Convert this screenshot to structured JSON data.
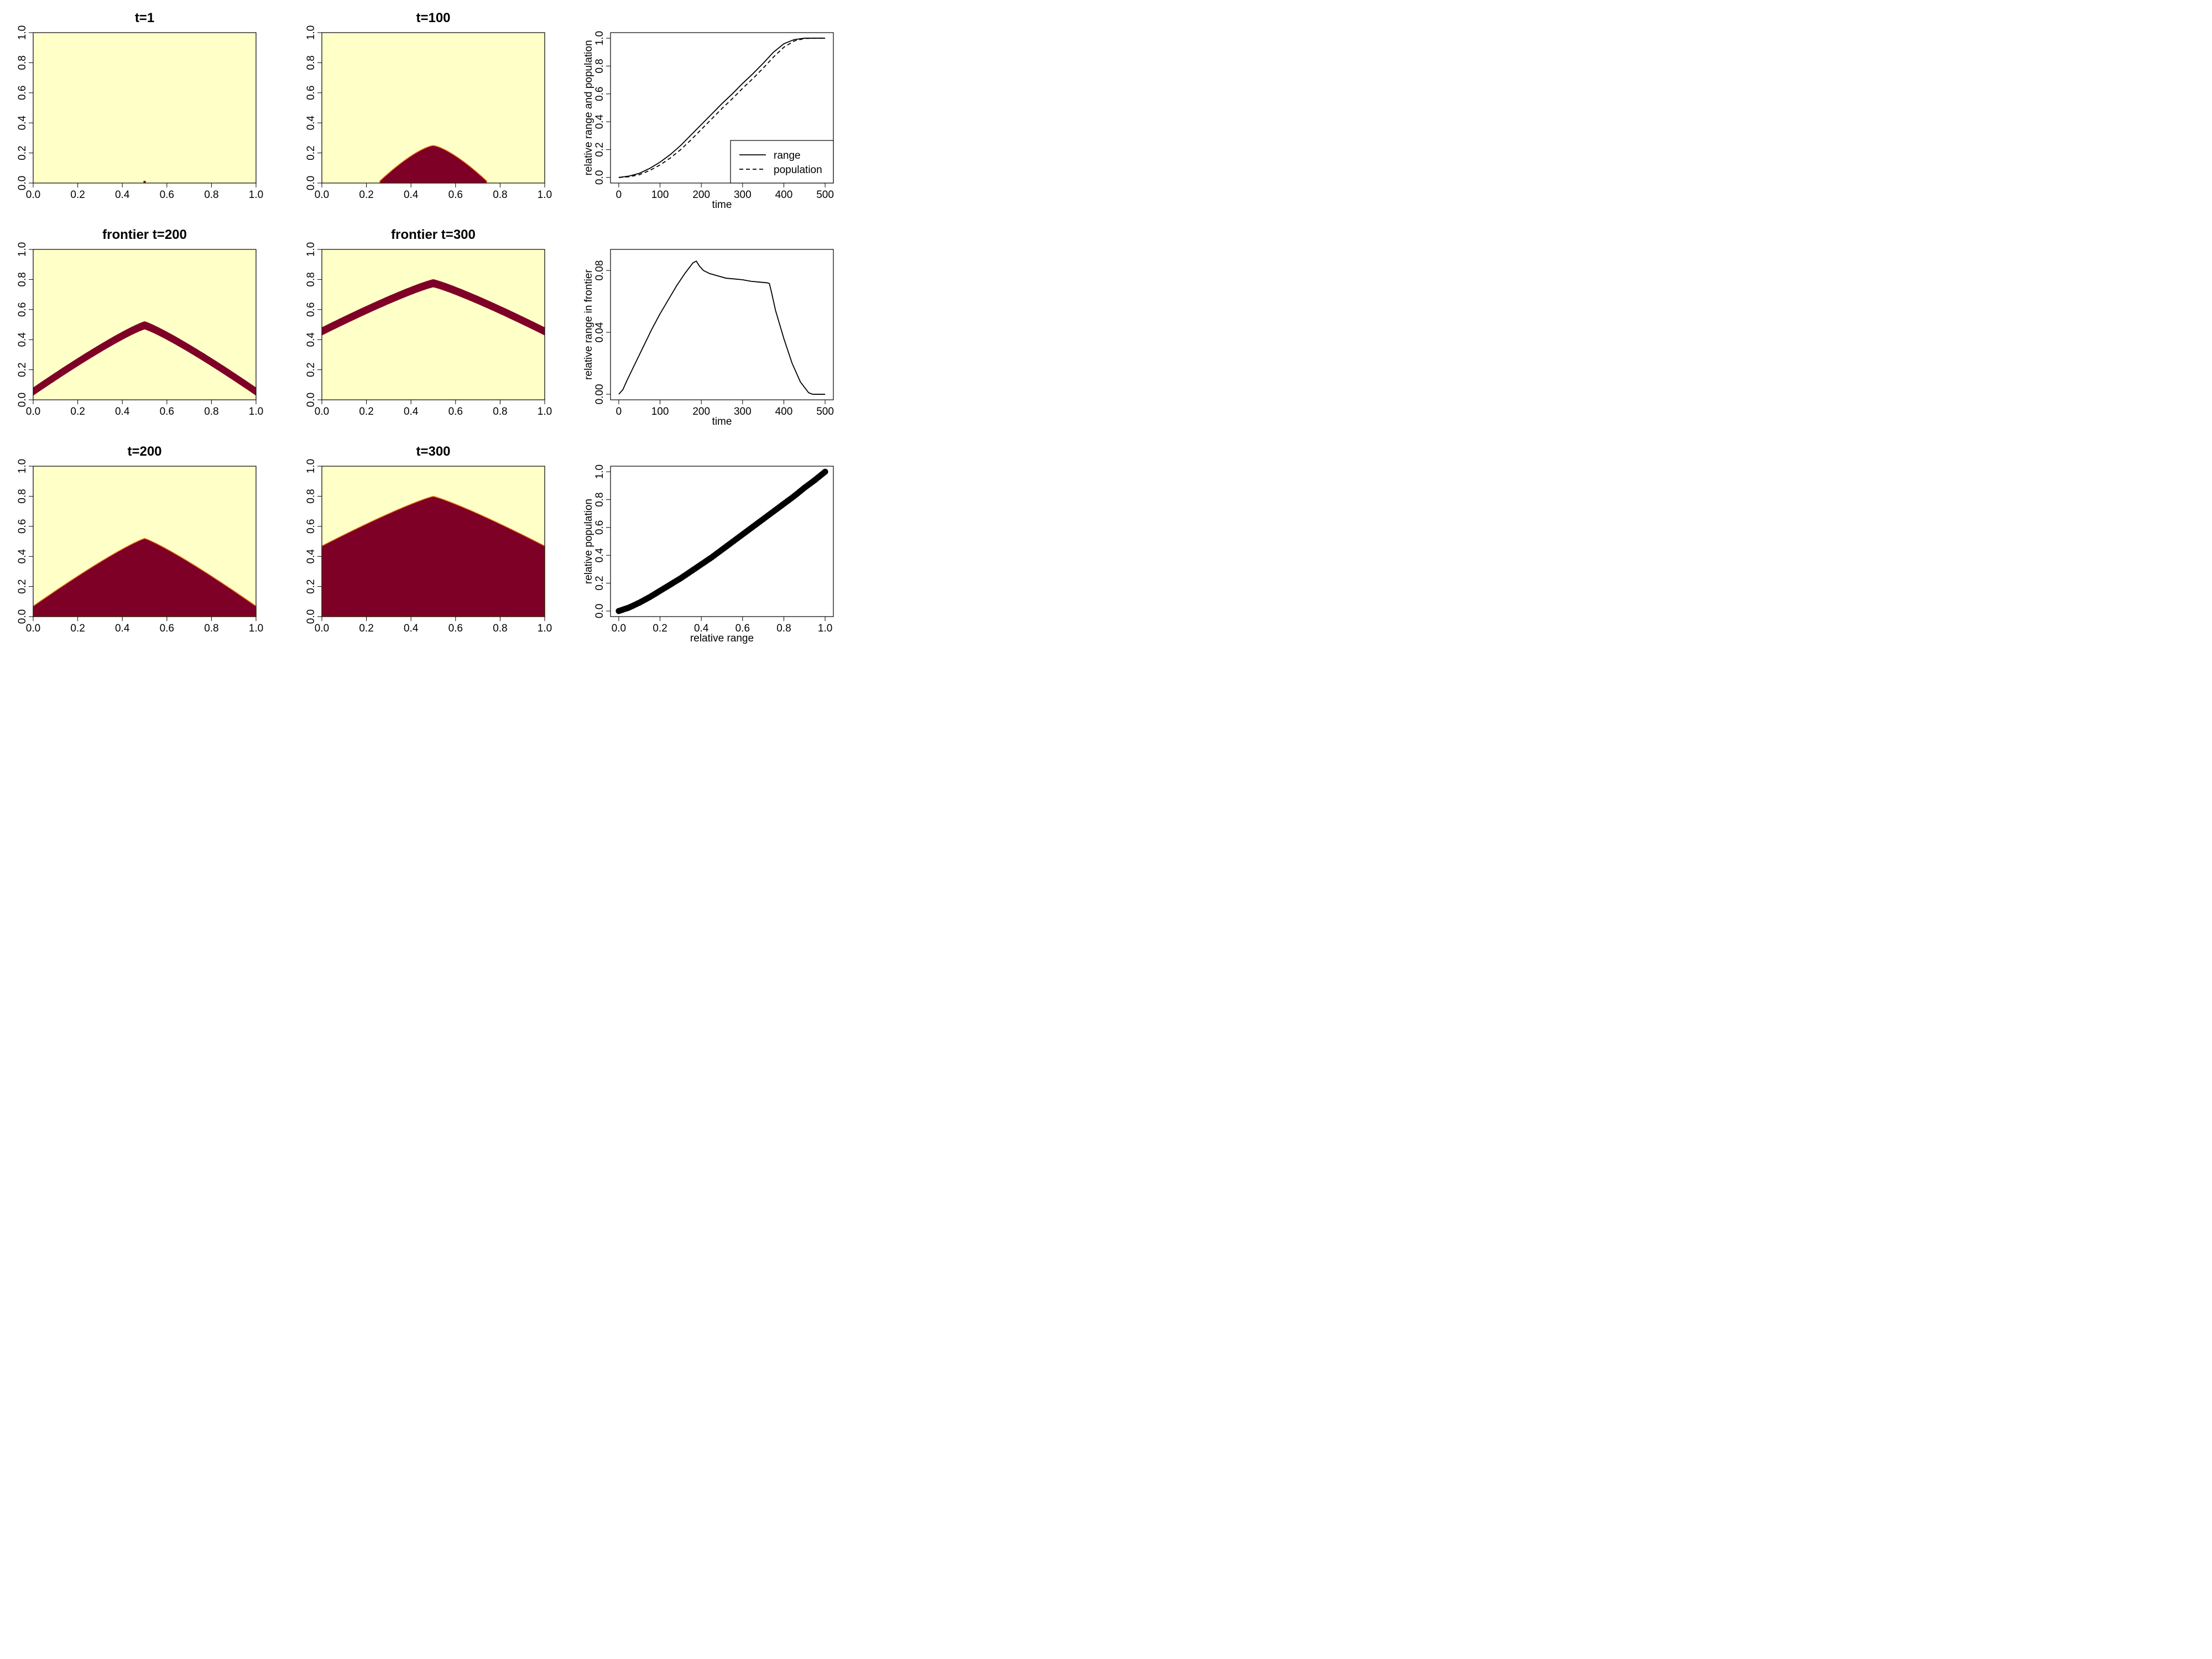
{
  "colors": {
    "background": "#FFFFC8",
    "occupied": "#7F0027",
    "edge": "#F28C28",
    "line": "#000000"
  },
  "chart_data": [
    {
      "type": "heatmap",
      "title": "t=1",
      "kind": "filled",
      "peak": 0.0,
      "dot": [
        0.5,
        0.0
      ],
      "xlim": [
        0,
        1
      ],
      "ylim": [
        0,
        1
      ],
      "xticks": [
        "0.0",
        "0.2",
        "0.4",
        "0.6",
        "0.8",
        "1.0"
      ],
      "yticks": [
        "0.0",
        "0.2",
        "0.4",
        "0.6",
        "0.8",
        "1.0"
      ]
    },
    {
      "type": "heatmap",
      "title": "t=100",
      "kind": "filled",
      "peak": 0.25,
      "halfwidth": 0.25,
      "xlim": [
        0,
        1
      ],
      "ylim": [
        0,
        1
      ],
      "xticks": [
        "0.0",
        "0.2",
        "0.4",
        "0.6",
        "0.8",
        "1.0"
      ],
      "yticks": [
        "0.0",
        "0.2",
        "0.4",
        "0.6",
        "0.8",
        "1.0"
      ]
    },
    {
      "type": "line",
      "xlabel": "time",
      "ylabel": "relative range and population",
      "xlim": [
        0,
        500
      ],
      "ylim": [
        0,
        1
      ],
      "xticks": [
        "0",
        "100",
        "200",
        "300",
        "400",
        "500"
      ],
      "yticks": [
        "0.0",
        "0.2",
        "0.4",
        "0.6",
        "0.8",
        "1.0"
      ],
      "legend_position": "bottom-right",
      "series": [
        {
          "name": "range",
          "style": "solid",
          "x": [
            0,
            25,
            50,
            75,
            100,
            125,
            150,
            175,
            200,
            225,
            250,
            275,
            300,
            325,
            350,
            375,
            400,
            425,
            450,
            475,
            500
          ],
          "values": [
            0.0,
            0.01,
            0.03,
            0.065,
            0.11,
            0.165,
            0.23,
            0.305,
            0.38,
            0.455,
            0.53,
            0.6,
            0.675,
            0.745,
            0.82,
            0.9,
            0.96,
            0.99,
            1.0,
            1.0,
            1.0
          ]
        },
        {
          "name": "population",
          "style": "dashed",
          "x": [
            0,
            25,
            50,
            75,
            100,
            125,
            150,
            175,
            200,
            225,
            250,
            275,
            300,
            325,
            350,
            375,
            400,
            425,
            450,
            475,
            500
          ],
          "values": [
            0.0,
            0.005,
            0.02,
            0.05,
            0.09,
            0.14,
            0.2,
            0.27,
            0.345,
            0.42,
            0.495,
            0.565,
            0.64,
            0.71,
            0.785,
            0.865,
            0.935,
            0.98,
            0.998,
            1.0,
            1.0
          ]
        }
      ]
    },
    {
      "type": "heatmap",
      "title": "frontier t=200",
      "kind": "band",
      "peak": 0.52,
      "base": 0.08,
      "thickness": 0.05,
      "xlim": [
        0,
        1
      ],
      "ylim": [
        0,
        1
      ],
      "xticks": [
        "0.0",
        "0.2",
        "0.4",
        "0.6",
        "0.8",
        "1.0"
      ],
      "yticks": [
        "0.0",
        "0.2",
        "0.4",
        "0.6",
        "0.8",
        "1.0"
      ]
    },
    {
      "type": "heatmap",
      "title": "frontier t=300",
      "kind": "band",
      "peak": 0.8,
      "base": 0.48,
      "thickness": 0.05,
      "xlim": [
        0,
        1
      ],
      "ylim": [
        0,
        1
      ],
      "xticks": [
        "0.0",
        "0.2",
        "0.4",
        "0.6",
        "0.8",
        "1.0"
      ],
      "yticks": [
        "0.0",
        "0.2",
        "0.4",
        "0.6",
        "0.8",
        "1.0"
      ]
    },
    {
      "type": "line",
      "xlabel": "time",
      "ylabel": "relative range in frontier",
      "xlim": [
        0,
        500
      ],
      "ylim": [
        0,
        0.09
      ],
      "xticks": [
        "0",
        "100",
        "200",
        "300",
        "400",
        "500"
      ],
      "yticks": [
        "0.00",
        "0.04",
        "0.08"
      ],
      "ytick_values": [
        0,
        0.04,
        0.08
      ],
      "series": [
        {
          "name": "",
          "style": "solid",
          "x": [
            0,
            10,
            20,
            40,
            60,
            80,
            100,
            120,
            140,
            160,
            180,
            188,
            195,
            205,
            220,
            240,
            260,
            280,
            300,
            320,
            340,
            360,
            365,
            370,
            380,
            400,
            420,
            440,
            460,
            470,
            480,
            500
          ],
          "values": [
            0.0,
            0.003,
            0.009,
            0.02,
            0.031,
            0.042,
            0.052,
            0.061,
            0.07,
            0.078,
            0.085,
            0.086,
            0.083,
            0.08,
            0.078,
            0.0765,
            0.075,
            0.0745,
            0.074,
            0.073,
            0.0725,
            0.072,
            0.0715,
            0.066,
            0.054,
            0.036,
            0.02,
            0.008,
            0.001,
            0.0,
            0.0,
            0.0
          ]
        }
      ]
    },
    {
      "type": "heatmap",
      "title": "t=200",
      "kind": "filled",
      "peak": 0.52,
      "base": 0.07,
      "xlim": [
        0,
        1
      ],
      "ylim": [
        0,
        1
      ],
      "xticks": [
        "0.0",
        "0.2",
        "0.4",
        "0.6",
        "0.8",
        "1.0"
      ],
      "yticks": [
        "0.0",
        "0.2",
        "0.4",
        "0.6",
        "0.8",
        "1.0"
      ]
    },
    {
      "type": "heatmap",
      "title": "t=300",
      "kind": "filled",
      "peak": 0.8,
      "base": 0.47,
      "xlim": [
        0,
        1
      ],
      "ylim": [
        0,
        1
      ],
      "xticks": [
        "0.0",
        "0.2",
        "0.4",
        "0.6",
        "0.8",
        "1.0"
      ],
      "yticks": [
        "0.0",
        "0.2",
        "0.4",
        "0.6",
        "0.8",
        "1.0"
      ]
    },
    {
      "type": "scatter",
      "xlabel": "relative range",
      "ylabel": "relative population",
      "xlim": [
        0,
        1
      ],
      "ylim": [
        0,
        1
      ],
      "xticks": [
        "0.0",
        "0.2",
        "0.4",
        "0.6",
        "0.8",
        "1.0"
      ],
      "yticks": [
        "0.0",
        "0.2",
        "0.4",
        "0.6",
        "0.8",
        "1.0"
      ],
      "series": [
        {
          "name": "",
          "x": [
            0.0,
            0.05,
            0.1,
            0.15,
            0.2,
            0.25,
            0.3,
            0.35,
            0.4,
            0.45,
            0.5,
            0.55,
            0.6,
            0.65,
            0.7,
            0.75,
            0.8,
            0.85,
            0.9,
            0.95,
            1.0
          ],
          "values": [
            0.0,
            0.025,
            0.06,
            0.1,
            0.145,
            0.19,
            0.235,
            0.285,
            0.335,
            0.385,
            0.44,
            0.495,
            0.55,
            0.605,
            0.66,
            0.715,
            0.77,
            0.825,
            0.885,
            0.94,
            1.0
          ]
        }
      ]
    }
  ]
}
